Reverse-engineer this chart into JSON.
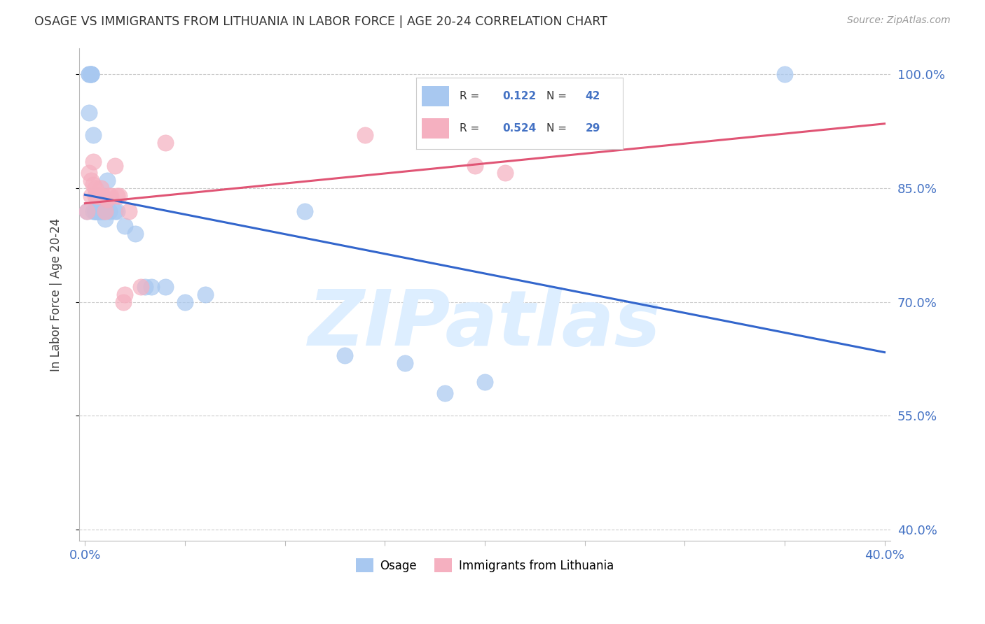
{
  "title": "OSAGE VS IMMIGRANTS FROM LITHUANIA IN LABOR FORCE | AGE 20-24 CORRELATION CHART",
  "source": "Source: ZipAtlas.com",
  "ylabel": "In Labor Force | Age 20-24",
  "xlim": [
    -0.003,
    0.403
  ],
  "ylim": [
    0.385,
    1.035
  ],
  "blue_color": "#a8c8f0",
  "pink_color": "#f5b0c0",
  "blue_line_color": "#3366cc",
  "pink_line_color": "#e05575",
  "legend_r_blue": "0.122",
  "legend_n_blue": "42",
  "legend_r_pink": "0.524",
  "legend_n_pink": "29",
  "watermark_color": "#ddeeff",
  "ytick_positions": [
    0.4,
    0.55,
    0.7,
    0.85,
    1.0
  ],
  "ytick_labels": [
    "40.0%",
    "55.0%",
    "70.0%",
    "85.0%",
    "100.0%"
  ],
  "osage_x": [
    0.001,
    0.002,
    0.002,
    0.002,
    0.003,
    0.003,
    0.003,
    0.003,
    0.004,
    0.004,
    0.005,
    0.005,
    0.005,
    0.005,
    0.006,
    0.006,
    0.007,
    0.007,
    0.007,
    0.008,
    0.008,
    0.009,
    0.009,
    0.01,
    0.01,
    0.011,
    0.012,
    0.015,
    0.016,
    0.02,
    0.025,
    0.03,
    0.033,
    0.04,
    0.05,
    0.06,
    0.11,
    0.13,
    0.16,
    0.18,
    0.2,
    0.35
  ],
  "osage_y": [
    0.82,
    1.0,
    1.0,
    0.95,
    1.0,
    1.0,
    1.0,
    1.0,
    0.92,
    0.82,
    0.82,
    0.82,
    0.82,
    0.82,
    0.82,
    0.82,
    0.82,
    0.82,
    0.82,
    0.82,
    0.82,
    0.82,
    0.82,
    0.82,
    0.81,
    0.86,
    0.82,
    0.82,
    0.82,
    0.8,
    0.79,
    0.72,
    0.72,
    0.72,
    0.7,
    0.71,
    0.82,
    0.63,
    0.62,
    0.58,
    0.595,
    1.0
  ],
  "lith_x": [
    0.001,
    0.002,
    0.003,
    0.003,
    0.004,
    0.004,
    0.005,
    0.005,
    0.006,
    0.006,
    0.007,
    0.008,
    0.008,
    0.009,
    0.01,
    0.011,
    0.012,
    0.013,
    0.015,
    0.016,
    0.017,
    0.019,
    0.02,
    0.022,
    0.028,
    0.04,
    0.14,
    0.195,
    0.21
  ],
  "lith_y": [
    0.82,
    0.87,
    0.86,
    0.84,
    0.885,
    0.855,
    0.85,
    0.84,
    0.84,
    0.84,
    0.84,
    0.85,
    0.84,
    0.84,
    0.82,
    0.835,
    0.84,
    0.84,
    0.88,
    0.84,
    0.84,
    0.7,
    0.71,
    0.82,
    0.72,
    0.91,
    0.92,
    0.88,
    0.87
  ]
}
